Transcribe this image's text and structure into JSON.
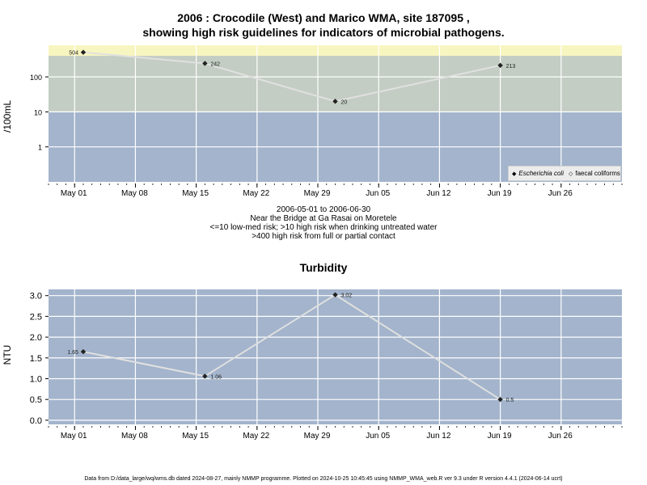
{
  "title_line1": "2006 : Crocodile (West) and Marico WMA, site 187095 ,",
  "title_line2": "showing high risk guidelines for indicators of microbial pathogens.",
  "subtitle_lines": [
    "2006-05-01 to 2006-06-30",
    "Near the Bridge at Ga Rasai on Moretele",
    "<=10 low-med risk; >10 high risk when drinking untreated water",
    ">400 high risk from full or partial contact"
  ],
  "footer": "Data from D:/data_large/wq/wms.db dated 2024-08-27, mainly NMMP programme. Plotted on 2024-10-25 10:45:45 using NMMP_WMA_web.R ver 9.3 under R version 4.4.1 (2024-06-14 ucrt)",
  "colors": {
    "band_low": "#a3b4cc",
    "band_mid": "#c3cdc3",
    "band_high": "#f8f6c0",
    "turb_bg": "#a3b4cc",
    "line": "#e0e0e0",
    "point": "#222222"
  },
  "legend": {
    "ecoli_label": "Escherichia coli",
    "fc_label": "faecal coliforms"
  },
  "chart_data": [
    {
      "type": "line",
      "ylabel": "/100mL",
      "xlabel": "",
      "x_tick_labels": [
        "May 01",
        "May 08",
        "May 15",
        "May 22",
        "May 29",
        "Jun 05",
        "Jun 12",
        "Jun 19",
        "Jun 26"
      ],
      "x_tick_dates": [
        "2006-05-01",
        "2006-05-08",
        "2006-05-15",
        "2006-05-22",
        "2006-05-29",
        "2006-06-05",
        "2006-06-12",
        "2006-06-19",
        "2006-06-26"
      ],
      "xlim": [
        "2006-04-28",
        "2006-07-03"
      ],
      "y_scale": "log",
      "y_ticks": [
        1,
        10,
        100
      ],
      "y_tick_labels": [
        "1",
        "10",
        "100"
      ],
      "ylim": [
        0.1,
        800
      ],
      "risk_bands": [
        {
          "from": 0.1,
          "to": 10,
          "meaning": "low-med risk"
        },
        {
          "from": 10,
          "to": 400,
          "meaning": "high risk when drinking"
        },
        {
          "from": 400,
          "to": 800,
          "meaning": "high risk from contact"
        }
      ],
      "legend_position": "bottom-right",
      "series": [
        {
          "name": "Escherichia coli",
          "x": [
            "2006-05-02",
            "2006-05-16",
            "2006-05-31",
            "2006-06-19"
          ],
          "y": [
            504,
            242,
            20,
            213
          ],
          "labels": [
            "504",
            "242",
            "20",
            "213"
          ]
        }
      ]
    },
    {
      "type": "line",
      "title": "Turbidity",
      "ylabel": "NTU",
      "xlabel": "",
      "x_tick_labels": [
        "May 01",
        "May 08",
        "May 15",
        "May 22",
        "May 29",
        "Jun 05",
        "Jun 12",
        "Jun 19",
        "Jun 26"
      ],
      "x_tick_dates": [
        "2006-05-01",
        "2006-05-08",
        "2006-05-15",
        "2006-05-22",
        "2006-05-29",
        "2006-06-05",
        "2006-06-12",
        "2006-06-19",
        "2006-06-26"
      ],
      "xlim": [
        "2006-04-28",
        "2006-07-03"
      ],
      "y_ticks": [
        0.0,
        0.5,
        1.0,
        1.5,
        2.0,
        2.5,
        3.0
      ],
      "y_tick_labels": [
        "0.0",
        "0.5",
        "1.0",
        "1.5",
        "2.0",
        "2.5",
        "3.0"
      ],
      "ylim": [
        -0.1,
        3.15
      ],
      "series": [
        {
          "x": [
            "2006-05-02",
            "2006-05-16",
            "2006-05-31",
            "2006-06-19"
          ],
          "y": [
            1.65,
            1.06,
            3.02,
            0.5
          ],
          "labels": [
            "1.65",
            "1.06",
            "3.02",
            "0.5"
          ]
        }
      ]
    }
  ]
}
